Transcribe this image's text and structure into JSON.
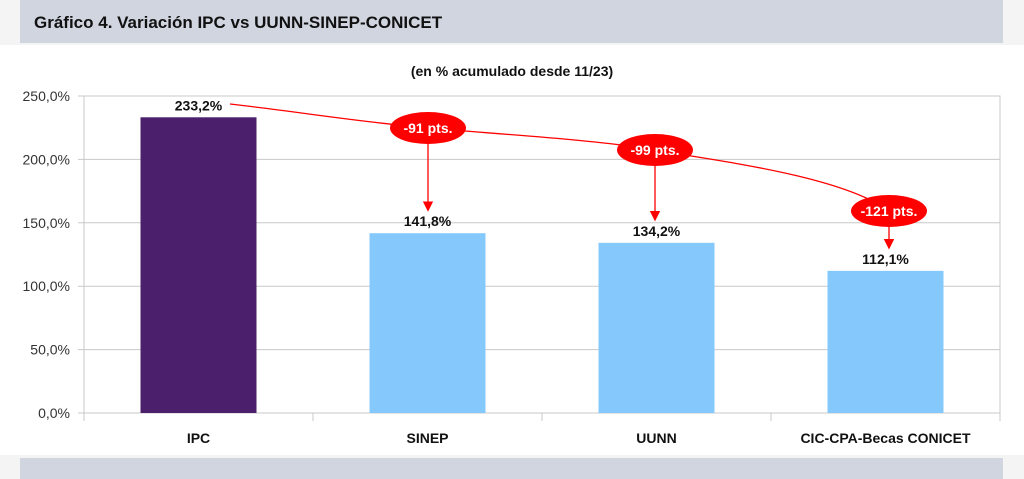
{
  "header": {
    "title": "Gráfico 4. Variación IPC vs UUNN-SINEP-CONICET"
  },
  "chart_data": {
    "type": "bar",
    "title": "(en % acumulado desde 11/23)",
    "categories": [
      "IPC",
      "SINEP",
      "UUNN",
      "CIC-CPA-Becas CONICET"
    ],
    "values": [
      233.2,
      141.8,
      134.2,
      112.1
    ],
    "value_labels": [
      "233,2%",
      "141,8%",
      "134,2%",
      "112,1%"
    ],
    "colors": [
      "#4b1f6b",
      "#85c9fc",
      "#85c9fc",
      "#85c9fc"
    ],
    "ylim": [
      0,
      250
    ],
    "yticks": [
      0,
      50,
      100,
      150,
      200,
      250
    ],
    "ytick_labels": [
      "0,0%",
      "50,0%",
      "100,0%",
      "150,0%",
      "200,0%",
      "250,0%"
    ],
    "grid": true,
    "xlabel": "",
    "ylabel": "",
    "annotations": [
      {
        "text": "-91 pts.",
        "category": "SINEP"
      },
      {
        "text": "-99 pts.",
        "category": "UUNN"
      },
      {
        "text": "-121 pts.",
        "category": "CIC-CPA-Becas CONICET"
      }
    ],
    "annotation_color": "#ff0000"
  }
}
